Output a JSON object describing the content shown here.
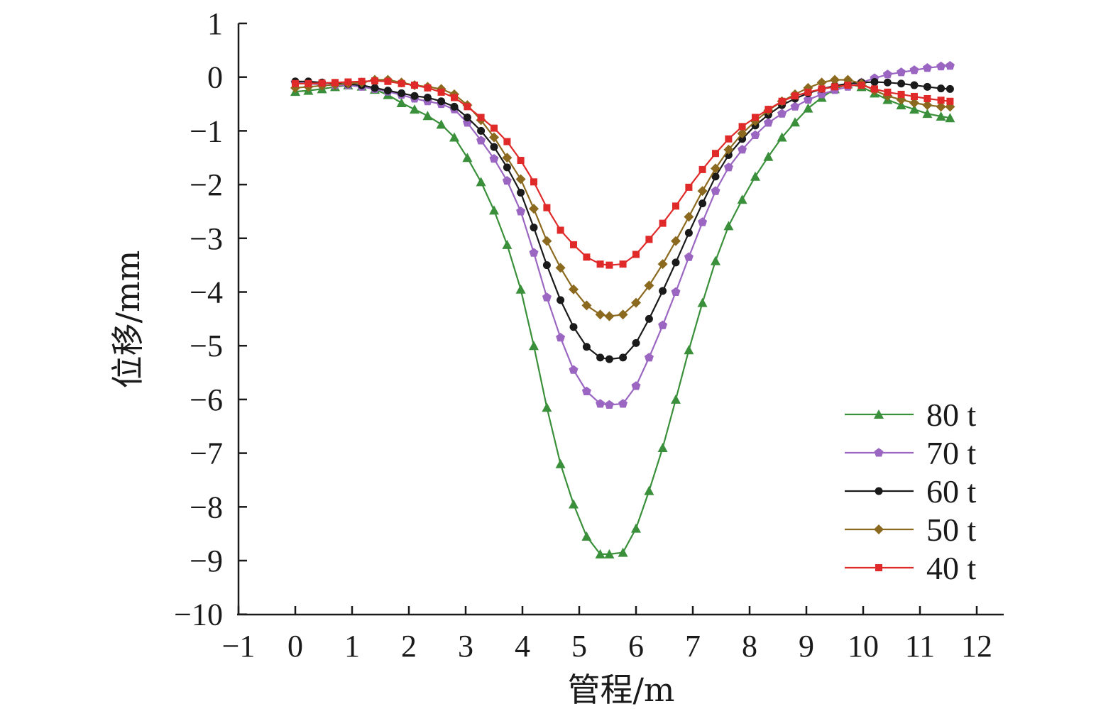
{
  "chart_data": {
    "type": "line",
    "xlabel": "管程/m",
    "ylabel": "位移/mm",
    "xlim": [
      -1,
      12
    ],
    "ylim": [
      -10,
      1
    ],
    "xticks": [
      "−1",
      "0",
      "1",
      "2",
      "3",
      "4",
      "5",
      "6",
      "7",
      "8",
      "9",
      "10",
      "11",
      "12"
    ],
    "yticks": [
      "1",
      "0",
      "−1",
      "−2",
      "−3",
      "−4",
      "−5",
      "−6",
      "−7",
      "−8",
      "−9",
      "−10"
    ],
    "grid": false,
    "legend_position": "bottom-right",
    "x": [
      0,
      0.23,
      0.47,
      0.7,
      0.93,
      1.17,
      1.4,
      1.63,
      1.87,
      2.1,
      2.33,
      2.57,
      2.8,
      3.03,
      3.27,
      3.5,
      3.73,
      3.97,
      4.2,
      4.43,
      4.67,
      4.9,
      5.13,
      5.37,
      5.53,
      5.77,
      6,
      6.23,
      6.47,
      6.7,
      6.93,
      7.17,
      7.4,
      7.63,
      7.87,
      8.1,
      8.33,
      8.57,
      8.8,
      9.03,
      9.27,
      9.5,
      9.73,
      9.97,
      10.2,
      10.43,
      10.67,
      10.9,
      11.13,
      11.37,
      11.53
    ],
    "series": [
      {
        "name": "80 t",
        "color": "#3a8f3a",
        "marker": "triangle",
        "values": [
          -0.27,
          -0.25,
          -0.22,
          -0.18,
          -0.15,
          -0.17,
          -0.23,
          -0.33,
          -0.48,
          -0.6,
          -0.72,
          -0.88,
          -1.12,
          -1.5,
          -1.95,
          -2.48,
          -3.12,
          -3.95,
          -5.0,
          -6.15,
          -7.2,
          -7.95,
          -8.55,
          -8.88,
          -8.88,
          -8.85,
          -8.4,
          -7.7,
          -6.9,
          -6.0,
          -5.08,
          -4.2,
          -3.42,
          -2.77,
          -2.28,
          -1.85,
          -1.48,
          -1.12,
          -0.84,
          -0.58,
          -0.38,
          -0.22,
          -0.13,
          -0.18,
          -0.3,
          -0.42,
          -0.52,
          -0.6,
          -0.68,
          -0.73,
          -0.76
        ]
      },
      {
        "name": "70 t",
        "color": "#9a66c2",
        "marker": "pentagon",
        "values": [
          -0.1,
          -0.12,
          -0.14,
          -0.15,
          -0.15,
          -0.18,
          -0.22,
          -0.27,
          -0.33,
          -0.4,
          -0.45,
          -0.5,
          -0.6,
          -0.85,
          -1.18,
          -1.52,
          -1.93,
          -2.5,
          -3.27,
          -4.1,
          -4.85,
          -5.45,
          -5.85,
          -6.08,
          -6.1,
          -6.08,
          -5.75,
          -5.22,
          -4.62,
          -4.0,
          -3.35,
          -2.7,
          -2.12,
          -1.68,
          -1.35,
          -1.08,
          -0.85,
          -0.68,
          -0.55,
          -0.42,
          -0.32,
          -0.24,
          -0.18,
          -0.1,
          -0.02,
          0.05,
          0.09,
          0.13,
          0.17,
          0.2,
          0.21
        ]
      },
      {
        "name": "60 t",
        "color": "#1a1a1a",
        "marker": "circle",
        "values": [
          -0.08,
          -0.08,
          -0.1,
          -0.12,
          -0.13,
          -0.15,
          -0.2,
          -0.25,
          -0.3,
          -0.35,
          -0.38,
          -0.45,
          -0.55,
          -0.75,
          -1.0,
          -1.3,
          -1.68,
          -2.15,
          -2.8,
          -3.5,
          -4.15,
          -4.65,
          -5.02,
          -5.22,
          -5.25,
          -5.22,
          -4.95,
          -4.5,
          -3.98,
          -3.45,
          -2.9,
          -2.35,
          -1.85,
          -1.45,
          -1.15,
          -0.9,
          -0.7,
          -0.52,
          -0.4,
          -0.3,
          -0.22,
          -0.16,
          -0.12,
          -0.1,
          -0.09,
          -0.1,
          -0.12,
          -0.15,
          -0.18,
          -0.21,
          -0.22
        ]
      },
      {
        "name": "50 t",
        "color": "#8b6a1f",
        "marker": "diamond",
        "values": [
          -0.2,
          -0.18,
          -0.16,
          -0.14,
          -0.12,
          -0.1,
          -0.05,
          -0.05,
          -0.1,
          -0.15,
          -0.18,
          -0.22,
          -0.32,
          -0.52,
          -0.8,
          -1.12,
          -1.5,
          -1.9,
          -2.45,
          -3.05,
          -3.55,
          -3.95,
          -4.25,
          -4.42,
          -4.45,
          -4.42,
          -4.2,
          -3.88,
          -3.48,
          -3.05,
          -2.6,
          -2.12,
          -1.7,
          -1.35,
          -1.05,
          -0.82,
          -0.62,
          -0.45,
          -0.32,
          -0.2,
          -0.1,
          -0.05,
          -0.05,
          -0.12,
          -0.25,
          -0.35,
          -0.42,
          -0.48,
          -0.52,
          -0.55,
          -0.55
        ]
      },
      {
        "name": "40 t",
        "color": "#e02929",
        "marker": "square",
        "values": [
          -0.12,
          -0.12,
          -0.11,
          -0.1,
          -0.09,
          -0.08,
          -0.07,
          -0.08,
          -0.12,
          -0.15,
          -0.2,
          -0.28,
          -0.38,
          -0.55,
          -0.75,
          -0.95,
          -1.2,
          -1.55,
          -1.95,
          -2.43,
          -2.85,
          -3.12,
          -3.35,
          -3.48,
          -3.5,
          -3.48,
          -3.3,
          -3.02,
          -2.72,
          -2.4,
          -2.05,
          -1.72,
          -1.42,
          -1.15,
          -0.92,
          -0.75,
          -0.6,
          -0.45,
          -0.35,
          -0.28,
          -0.22,
          -0.18,
          -0.15,
          -0.15,
          -0.22,
          -0.28,
          -0.32,
          -0.36,
          -0.4,
          -0.43,
          -0.45
        ]
      }
    ]
  }
}
